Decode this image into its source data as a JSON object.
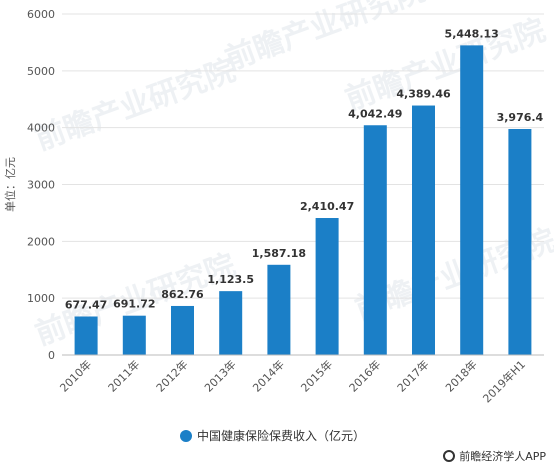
{
  "chart_data": {
    "type": "bar",
    "categories": [
      "2010年",
      "2011年",
      "2012年",
      "2013年",
      "2014年",
      "2015年",
      "2016年",
      "2017年",
      "2018年",
      "2019年H1"
    ],
    "series": [
      {
        "name": "中国健康保险保费收入（亿元）",
        "values": [
          677.47,
          691.72,
          862.76,
          1123.5,
          1587.18,
          2410.47,
          4042.49,
          4389.46,
          5448.13,
          3976.4
        ],
        "labels": [
          "677.47",
          "691.72",
          "862.76",
          "1,123.5",
          "1,587.18",
          "2,410.47",
          "4,042.49",
          "4,389.46",
          "5,448.13",
          "3,976.4"
        ],
        "color": "#1b7fc7"
      }
    ],
    "ylabel": "单位：亿元",
    "ylim": [
      0,
      6000
    ],
    "yticks": [
      0,
      1000,
      2000,
      3000,
      4000,
      5000,
      6000
    ],
    "grid": true,
    "legend_position": "bottom"
  },
  "watermark": "前瞻产业研究院",
  "source": "前瞻经济学人APP"
}
